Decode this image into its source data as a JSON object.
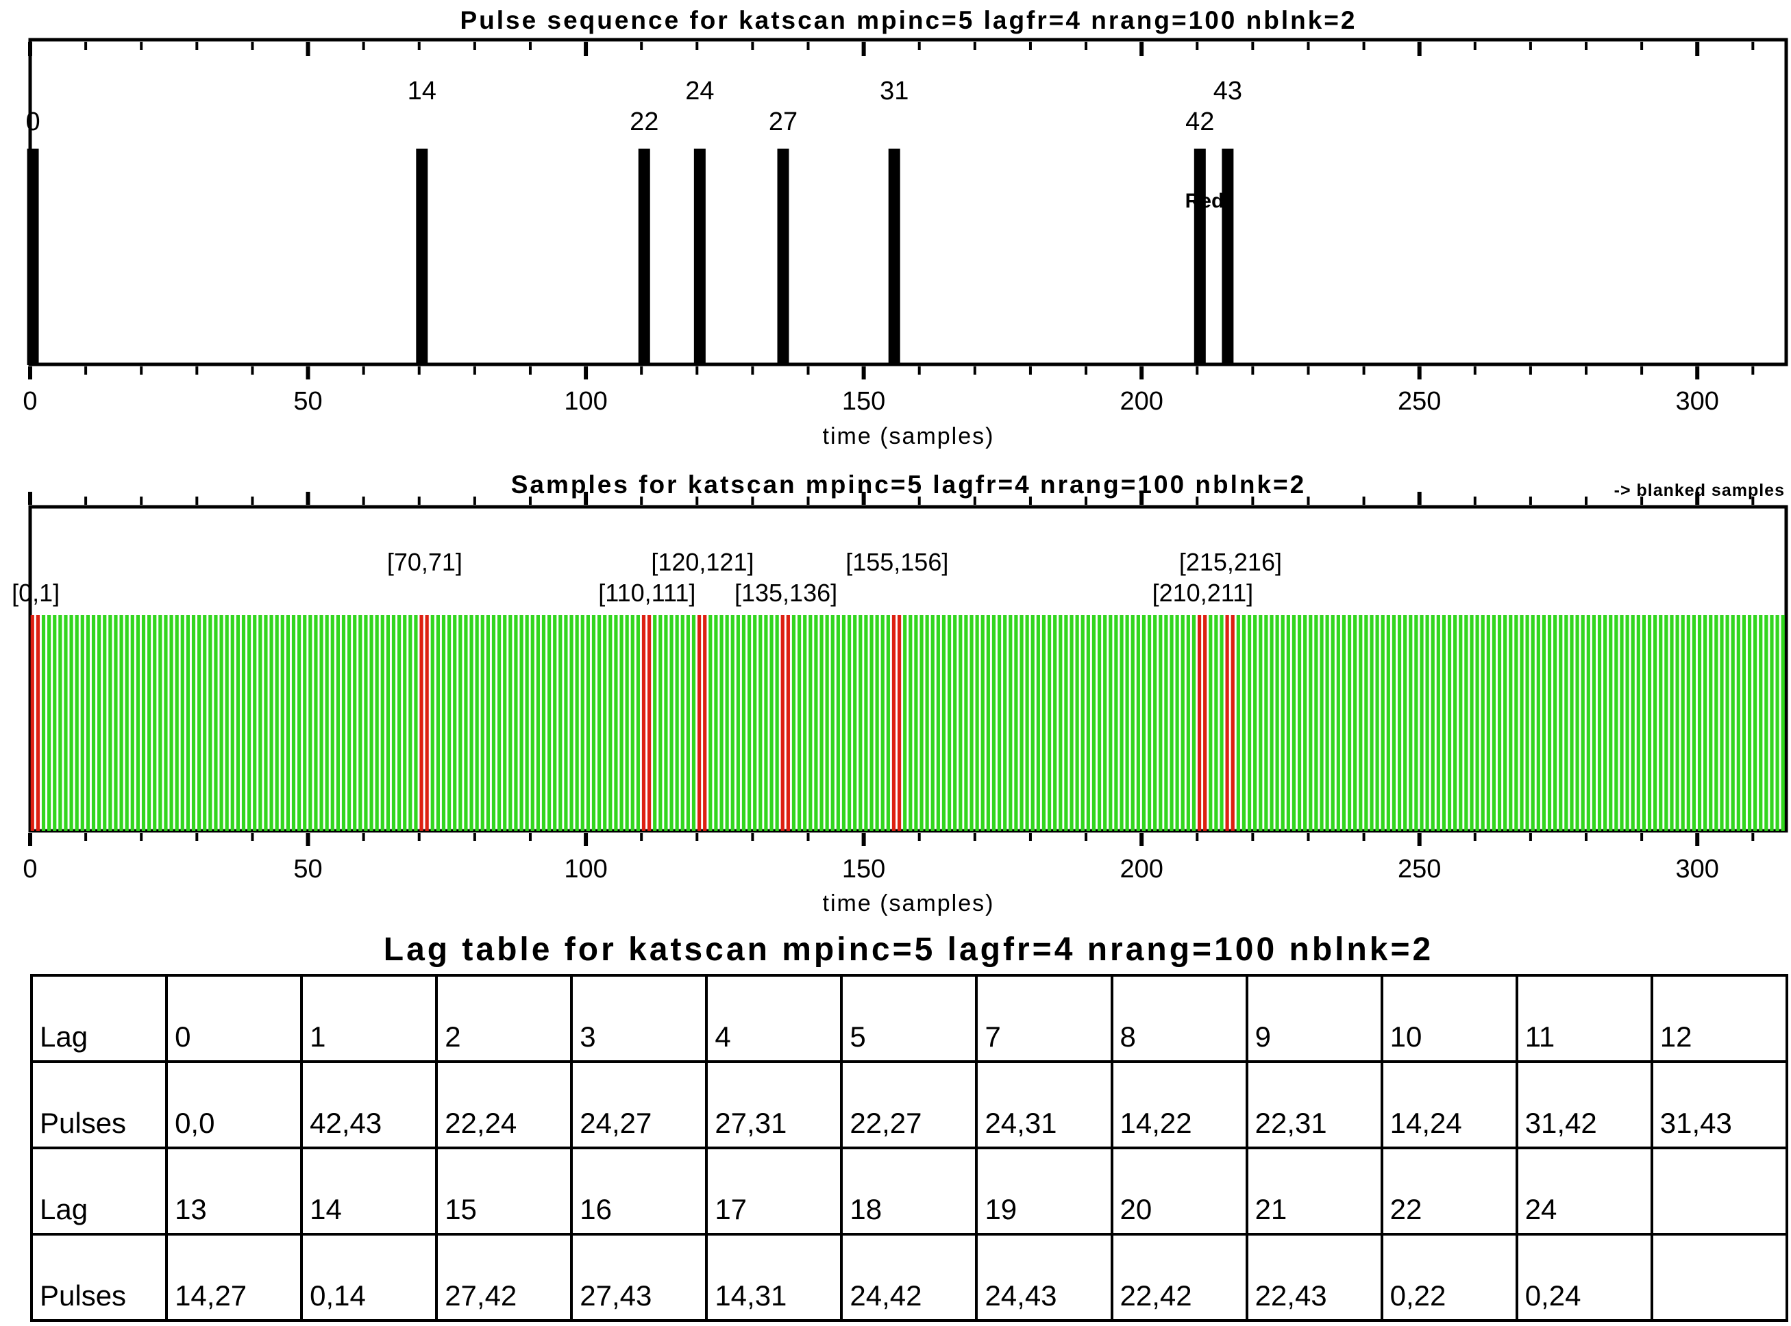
{
  "accent_colors": {
    "sample_green": "#32d61e",
    "blanked_red": "#dd2011",
    "ink": "#000000"
  },
  "chart_data": [
    {
      "type": "bar",
      "title": "Pulse sequence for katscan mpinc=5 lagfr=4 nrang=100 nblnk=2",
      "xlabel": "time (samples)",
      "mpinc": 5,
      "pulses": [
        0,
        14,
        22,
        24,
        27,
        31,
        42,
        43
      ],
      "pulse_label_rows": {
        "0": "lower",
        "14": "upper",
        "22": "lower",
        "24": "upper",
        "27": "lower",
        "31": "upper",
        "42": "lower",
        "43": "upper"
      },
      "pulse_times": [
        0,
        70,
        110,
        120,
        135,
        155,
        210,
        215
      ],
      "annotation": {
        "text": "Red",
        "color": "#e8281c",
        "at_pulse": 42
      },
      "axis": {
        "min": 0,
        "max": 316,
        "ticks": [
          0,
          50,
          100,
          150,
          200,
          250,
          300
        ],
        "minor_step": 10,
        "grid": false
      }
    },
    {
      "type": "bar",
      "title": "Samples for katscan mpinc=5 lagfr=4 nrang=100 nblnk=2",
      "legend": "-> blanked samples",
      "xlabel": "time (samples)",
      "n_samples": 316,
      "sample_value": 1,
      "blanked_pairs": [
        [
          0,
          1
        ],
        [
          70,
          71
        ],
        [
          110,
          111
        ],
        [
          120,
          121
        ],
        [
          135,
          136
        ],
        [
          155,
          156
        ],
        [
          210,
          211
        ],
        [
          215,
          216
        ]
      ],
      "labels": [
        {
          "text": "[0,1]",
          "t": 1,
          "row": "lower"
        },
        {
          "text": "[70,71]",
          "t": 71,
          "row": "upper"
        },
        {
          "text": "[110,111]",
          "t": 111,
          "row": "lower"
        },
        {
          "text": "[120,121]",
          "t": 121,
          "row": "upper"
        },
        {
          "text": "[135,136]",
          "t": 136,
          "row": "lower"
        },
        {
          "text": "[155,156]",
          "t": 156,
          "row": "upper"
        },
        {
          "text": "[210,211]",
          "t": 211,
          "row": "lower"
        },
        {
          "text": "[215,216]",
          "t": 216,
          "row": "upper"
        }
      ],
      "colors": {
        "sample": "#32d61e",
        "blanked": "#dd2011"
      },
      "axis": {
        "min": 0,
        "max": 316,
        "ticks": [
          0,
          50,
          100,
          150,
          200,
          250,
          300
        ],
        "minor_step": 10,
        "grid": false
      }
    },
    {
      "type": "table",
      "title": "Lag table for katscan mpinc=5 lagfr=4 nrang=100 nblnk=2",
      "rows": [
        [
          "Lag",
          "0",
          "1",
          "2",
          "3",
          "4",
          "5",
          "7",
          "8",
          "9",
          "10",
          "11",
          "12"
        ],
        [
          "Pulses",
          "0,0",
          "42,43",
          "22,24",
          "24,27",
          "27,31",
          "22,27",
          "24,31",
          "14,22",
          "22,31",
          "14,24",
          "31,42",
          "31,43"
        ],
        [
          "Lag",
          "13",
          "14",
          "15",
          "16",
          "17",
          "18",
          "19",
          "20",
          "21",
          "22",
          "24",
          ""
        ],
        [
          "Pulses",
          "14,27",
          "0,14",
          "27,42",
          "27,43",
          "14,31",
          "24,42",
          "24,43",
          "22,42",
          "22,43",
          "0,22",
          "0,24",
          ""
        ]
      ]
    }
  ]
}
